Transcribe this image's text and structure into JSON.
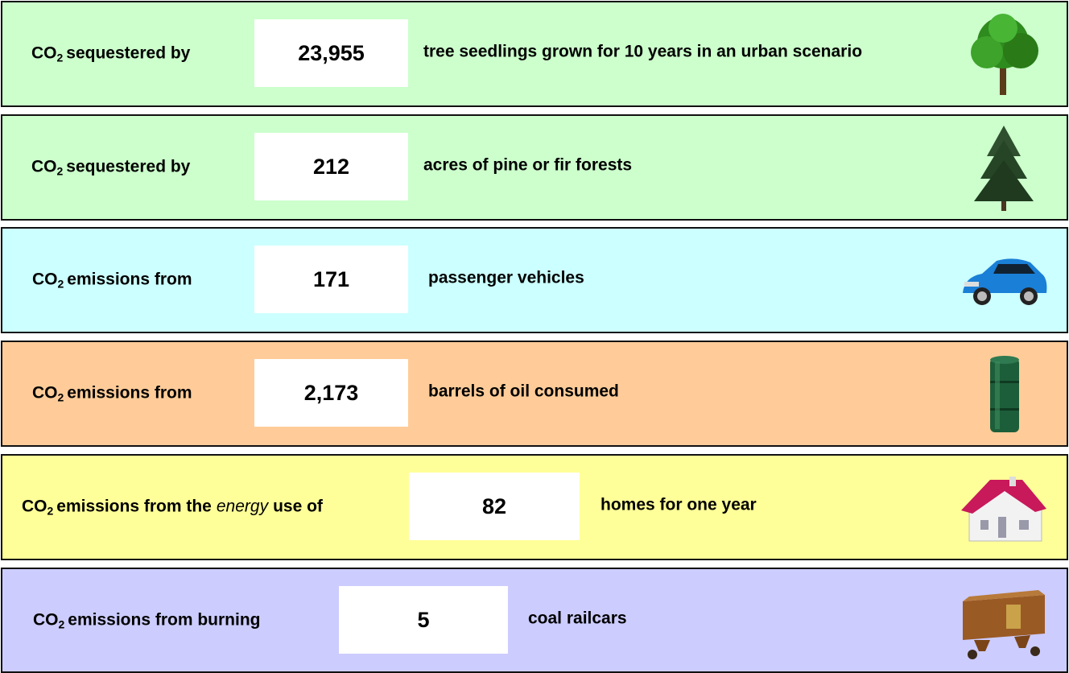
{
  "rows": [
    {
      "label": {
        "prefix": "CO",
        "subscript": "2",
        "text": "sequestered by"
      },
      "value": "23,955",
      "description": "tree seedlings grown for 10 years in an urban scenario"
    },
    {
      "label": {
        "prefix": "CO",
        "subscript": "2",
        "text": "sequestered by"
      },
      "value": "212",
      "description": "acres of pine or fir forests"
    },
    {
      "label": {
        "prefix": "CO",
        "subscript": "2",
        "text": "emissions from"
      },
      "value": "171",
      "description": "passenger vehicles"
    },
    {
      "label": {
        "prefix": "CO",
        "subscript": "2",
        "text": "emissions from"
      },
      "value": "2,173",
      "description": "barrels of oil consumed"
    },
    {
      "label": {
        "prefix": "CO",
        "subscript": "2",
        "text": "emissions from the",
        "emphasis": "energy",
        "text_after": "use of"
      },
      "value": "82",
      "description": "homes for one year"
    },
    {
      "label": {
        "prefix": "CO",
        "subscript": "2",
        "text": "emissions from burning"
      },
      "value": "5",
      "description": "coal railcars"
    }
  ]
}
